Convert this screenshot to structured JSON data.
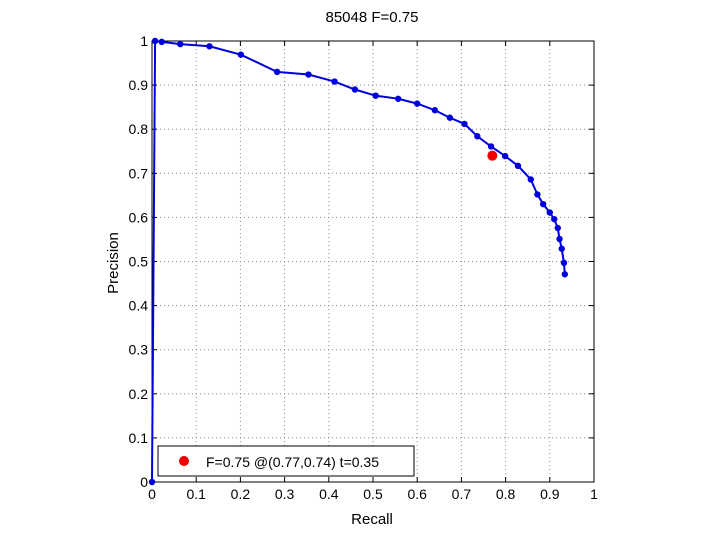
{
  "chart_data": {
    "type": "line",
    "title": "85048 F=0.75",
    "xlabel": "Recall",
    "ylabel": "Precision",
    "xlim": [
      0,
      1
    ],
    "ylim": [
      0,
      1
    ],
    "grid": true,
    "legend_position": "bottom-left",
    "xticks": [
      "0",
      "0.1",
      "0.2",
      "0.3",
      "0.4",
      "0.5",
      "0.6",
      "0.7",
      "0.8",
      "0.9",
      "1"
    ],
    "yticks": [
      "0",
      "0.1",
      "0.2",
      "0.3",
      "0.4",
      "0.5",
      "0.6",
      "0.7",
      "0.8",
      "0.9",
      "1"
    ],
    "series": [
      {
        "color": "#0000dd",
        "recall": [
          0.934,
          0.932,
          0.927,
          0.922,
          0.918,
          0.91,
          0.9,
          0.885,
          0.872,
          0.857,
          0.828,
          0.799,
          0.767,
          0.736,
          0.707,
          0.674,
          0.64,
          0.6,
          0.557,
          0.506,
          0.459,
          0.413,
          0.354,
          0.283,
          0.201,
          0.13,
          0.064,
          0.022,
          0.007,
          0.0
        ],
        "precision": [
          0.471,
          0.497,
          0.529,
          0.551,
          0.576,
          0.596,
          0.611,
          0.63,
          0.652,
          0.686,
          0.717,
          0.739,
          0.761,
          0.784,
          0.812,
          0.826,
          0.843,
          0.858,
          0.869,
          0.876,
          0.89,
          0.908,
          0.924,
          0.93,
          0.969,
          0.988,
          0.993,
          0.998,
          1.0,
          0.0
        ]
      }
    ],
    "best_point": {
      "recall": 0.77,
      "precision": 0.74,
      "color": "#ee0000"
    },
    "legend_text": "F=0.75 @(0.77,0.74) t=0.35"
  }
}
